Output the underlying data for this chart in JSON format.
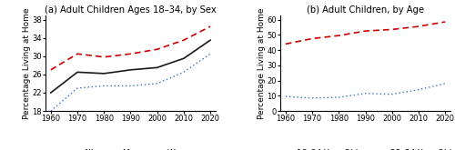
{
  "years": [
    1960,
    1970,
    1980,
    1990,
    2000,
    2010,
    2020
  ],
  "panel_a": {
    "title": "(a) Adult Children Ages 18–34, by Sex",
    "ylabel": "Percentage Living at Home",
    "ylim": [
      18,
      39
    ],
    "yticks": [
      18,
      22,
      26,
      30,
      34,
      38
    ],
    "all": [
      22.0,
      26.5,
      26.2,
      27.0,
      27.5,
      29.5,
      33.5
    ],
    "men": [
      27.0,
      30.5,
      29.8,
      30.5,
      31.5,
      33.5,
      36.5
    ],
    "women": [
      18.0,
      23.0,
      23.5,
      23.5,
      24.0,
      26.5,
      30.5
    ]
  },
  "panel_b": {
    "title": "(b) Adult Children, by Age",
    "ylabel": "Percentage Living at Home",
    "ylim": [
      0,
      63
    ],
    "yticks": [
      0,
      10,
      20,
      30,
      40,
      50,
      60
    ],
    "age1824": [
      44.0,
      47.5,
      49.5,
      52.5,
      53.5,
      55.5,
      58.5
    ],
    "age2534": [
      9.5,
      8.5,
      9.0,
      11.5,
      11.0,
      14.0,
      18.0
    ]
  },
  "colors": {
    "black": "#1a1a1a",
    "red": "#cc0000",
    "blue": "#3a6bc9"
  },
  "legend_fontsize": 6.5,
  "title_fontsize": 7.2,
  "tick_fontsize": 6.0,
  "ylabel_fontsize": 6.5
}
